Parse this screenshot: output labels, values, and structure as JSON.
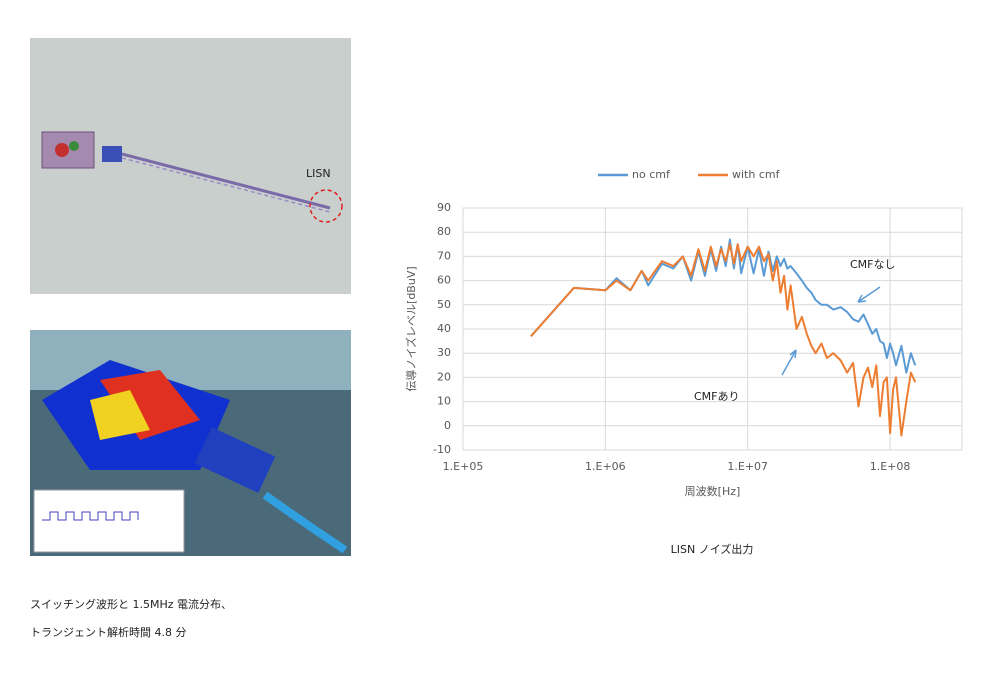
{
  "images": {
    "lisn_label": "LISN"
  },
  "caption": {
    "lines": [
      "スイッチング波形と 1.5MHz 電流分布、",
      "トランジェント解析時間 4.8 分"
    ]
  },
  "chart_caption": "LISN ノイズ出力",
  "chart_data": {
    "type": "line",
    "xlabel": "周波数[Hz]",
    "ylabel": "伝導ノイズレベル[dBuV]",
    "xscale": "log",
    "grid": true,
    "legend": "top",
    "xlim": [
      100000,
      320000000
    ],
    "xticks": [
      {
        "value": 100000,
        "label": "1.E+05"
      },
      {
        "value": 1000000,
        "label": "1.E+06"
      },
      {
        "value": 10000000,
        "label": "1.E+07"
      },
      {
        "value": 100000000,
        "label": "1.E+08"
      }
    ],
    "ylim": [
      -10,
      90
    ],
    "yticks": [
      -10,
      0,
      10,
      20,
      30,
      40,
      50,
      60,
      70,
      80,
      90
    ],
    "x": [
      300000,
      600000,
      1000000,
      1200000,
      1500000,
      1800000,
      2000000,
      2500000,
      3000000,
      3500000,
      4000000,
      4500000,
      5000000,
      5500000,
      6000000,
      6500000,
      7000000,
      7500000,
      8000000,
      8500000,
      9000000,
      10000000,
      11000000,
      12000000,
      13000000,
      14000000,
      15000000,
      16000000,
      17000000,
      18000000,
      19000000,
      20000000,
      22000000,
      24000000,
      26000000,
      28000000,
      30000000,
      33000000,
      36000000,
      40000000,
      45000000,
      50000000,
      55000000,
      60000000,
      65000000,
      70000000,
      75000000,
      80000000,
      85000000,
      90000000,
      95000000,
      100000000,
      105000000,
      110000000,
      120000000,
      130000000,
      140000000,
      150000000
    ],
    "series": [
      {
        "name": "no cmf",
        "color": "#5b9bd5",
        "values": [
          37,
          57,
          56,
          61,
          56,
          64,
          58,
          67,
          65,
          70,
          60,
          72,
          62,
          73,
          64,
          74,
          66,
          77,
          65,
          75,
          63,
          74,
          63,
          73,
          62,
          72,
          64,
          70,
          66,
          69,
          65,
          66,
          63,
          60,
          57,
          55,
          52,
          50,
          50,
          48,
          49,
          47,
          44,
          43,
          46,
          42,
          38,
          40,
          35,
          34,
          28,
          34,
          30,
          25,
          33,
          22,
          30,
          25
        ]
      },
      {
        "name": "with cmf",
        "color": "#ed7d31",
        "values": [
          37,
          57,
          56,
          60,
          56,
          64,
          60,
          68,
          66,
          70,
          62,
          73,
          64,
          74,
          66,
          73,
          68,
          75,
          67,
          75,
          68,
          74,
          70,
          74,
          68,
          71,
          60,
          68,
          55,
          62,
          48,
          58,
          40,
          45,
          38,
          33,
          30,
          34,
          28,
          30,
          27,
          22,
          26,
          8,
          20,
          24,
          16,
          25,
          4,
          18,
          20,
          -3,
          15,
          20,
          -4,
          10,
          22,
          18
        ]
      }
    ],
    "annotations": [
      "CMFなし",
      "CMFあり"
    ]
  }
}
